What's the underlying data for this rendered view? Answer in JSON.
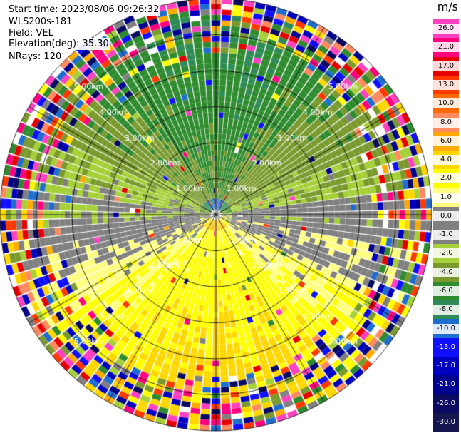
{
  "header": {
    "start_time": "Start time: 2023/08/06 09:26:32",
    "instrument": "WLS200s-181",
    "field": "Field: VEL",
    "elevation": "Elevation(deg): 35.30",
    "nrays": "NRays: 120"
  },
  "chart_data": {
    "type": "polar-ppi",
    "field": "VEL",
    "unit": "m/s",
    "elevation_deg": 35.3,
    "n_rays": 120,
    "max_range_km": 6.0,
    "range_rings_km": [
      1,
      2,
      3,
      4,
      5,
      6
    ],
    "range_labels": [
      "1.00km",
      "2.00km",
      "3.00km",
      "4.00km",
      "5.00km"
    ],
    "colorbar": {
      "ticks": [
        "26.0",
        "21.0",
        "17.0",
        "13.0",
        "10.0",
        "8.0",
        "6.0",
        "4.0",
        "2.0",
        "1.0",
        "0.0",
        "-1.0",
        "-2.0",
        "-4.0",
        "-6.0",
        "-8.0",
        "-10.0",
        "-13.0",
        "-17.0",
        "-21.0",
        "-26.0",
        "-30.0"
      ],
      "colors": [
        "#ff40c0",
        "#ff0080",
        "#e60000",
        "#ff3a00",
        "#ff6a00",
        "#ff8a60",
        "#ffaa00",
        "#ffd700",
        "#ffff00",
        "#ffff80",
        "#808080",
        "#808080",
        "#a5d038",
        "#7a9a2e",
        "#2e8b2e",
        "#2e8b57",
        "#1e6ecf",
        "#1010ff",
        "#0000c0",
        "#000090",
        "#0a0a60",
        "#151550"
      ]
    },
    "wind_pattern": {
      "toward_direction_deg": 0,
      "speed_ms": 3.0,
      "offset_ms": -0.6,
      "shear_ms_per_km": 0.5
    }
  }
}
